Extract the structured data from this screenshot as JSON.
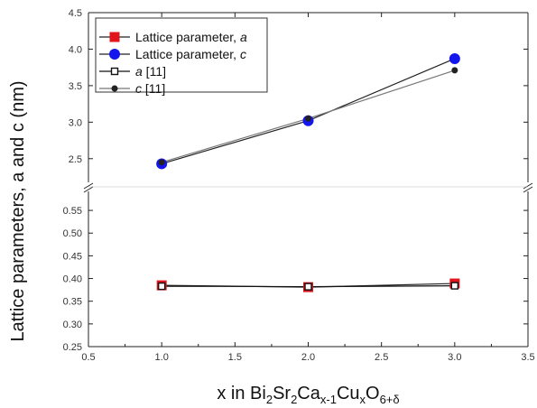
{
  "chart_data": {
    "type": "line",
    "xlabel_parts": [
      "x in Bi",
      "2",
      "Sr",
      "2",
      "Ca",
      "x-1",
      "Cu",
      "x",
      "O",
      "6+δ"
    ],
    "ylabel": "Lattice parameters, a and c (nm)",
    "xlim": [
      0.5,
      3.5
    ],
    "xticks": [
      "0.5",
      "1.0",
      "1.5",
      "2.0",
      "2.5",
      "3.0",
      "3.5"
    ],
    "y_upper": {
      "ylim": [
        2.25,
        4.5
      ],
      "ticks": [
        "2.5",
        "3.0",
        "3.5",
        "4.0",
        "4.5"
      ]
    },
    "y_lower": {
      "ylim": [
        0.25,
        0.58
      ],
      "ticks": [
        "0.25",
        "0.30",
        "0.35",
        "0.40",
        "0.45",
        "0.50",
        "0.55"
      ]
    },
    "axis_break": true,
    "legend_position": "top-left",
    "series": [
      {
        "name_text": "Lattice parameter, ",
        "name_var": "a",
        "panel": "lower",
        "marker": "filled-square",
        "color": "#e0161c",
        "line_color": "#222222",
        "x": [
          1,
          2,
          3
        ],
        "y": [
          0.385,
          0.381,
          0.389
        ]
      },
      {
        "name_text": "Lattice parameter, ",
        "name_var": "c",
        "panel": "upper",
        "marker": "filled-circle",
        "color": "#1515ee",
        "line_color": "#222222",
        "x": [
          1,
          2,
          3
        ],
        "y": [
          2.43,
          3.02,
          3.87
        ]
      },
      {
        "name_text": " [11]",
        "name_var": "a",
        "panel": "lower",
        "marker": "open-square",
        "color": "#111111",
        "line_color": "#111111",
        "x": [
          1,
          2,
          3
        ],
        "y": [
          0.383,
          0.382,
          0.384
        ]
      },
      {
        "name_text": " [11]",
        "name_var": "c",
        "panel": "upper",
        "marker": "small-circle",
        "color": "#222222",
        "line_color": "#777777",
        "x": [
          1,
          2,
          3
        ],
        "y": [
          2.45,
          3.05,
          3.71
        ]
      }
    ]
  }
}
